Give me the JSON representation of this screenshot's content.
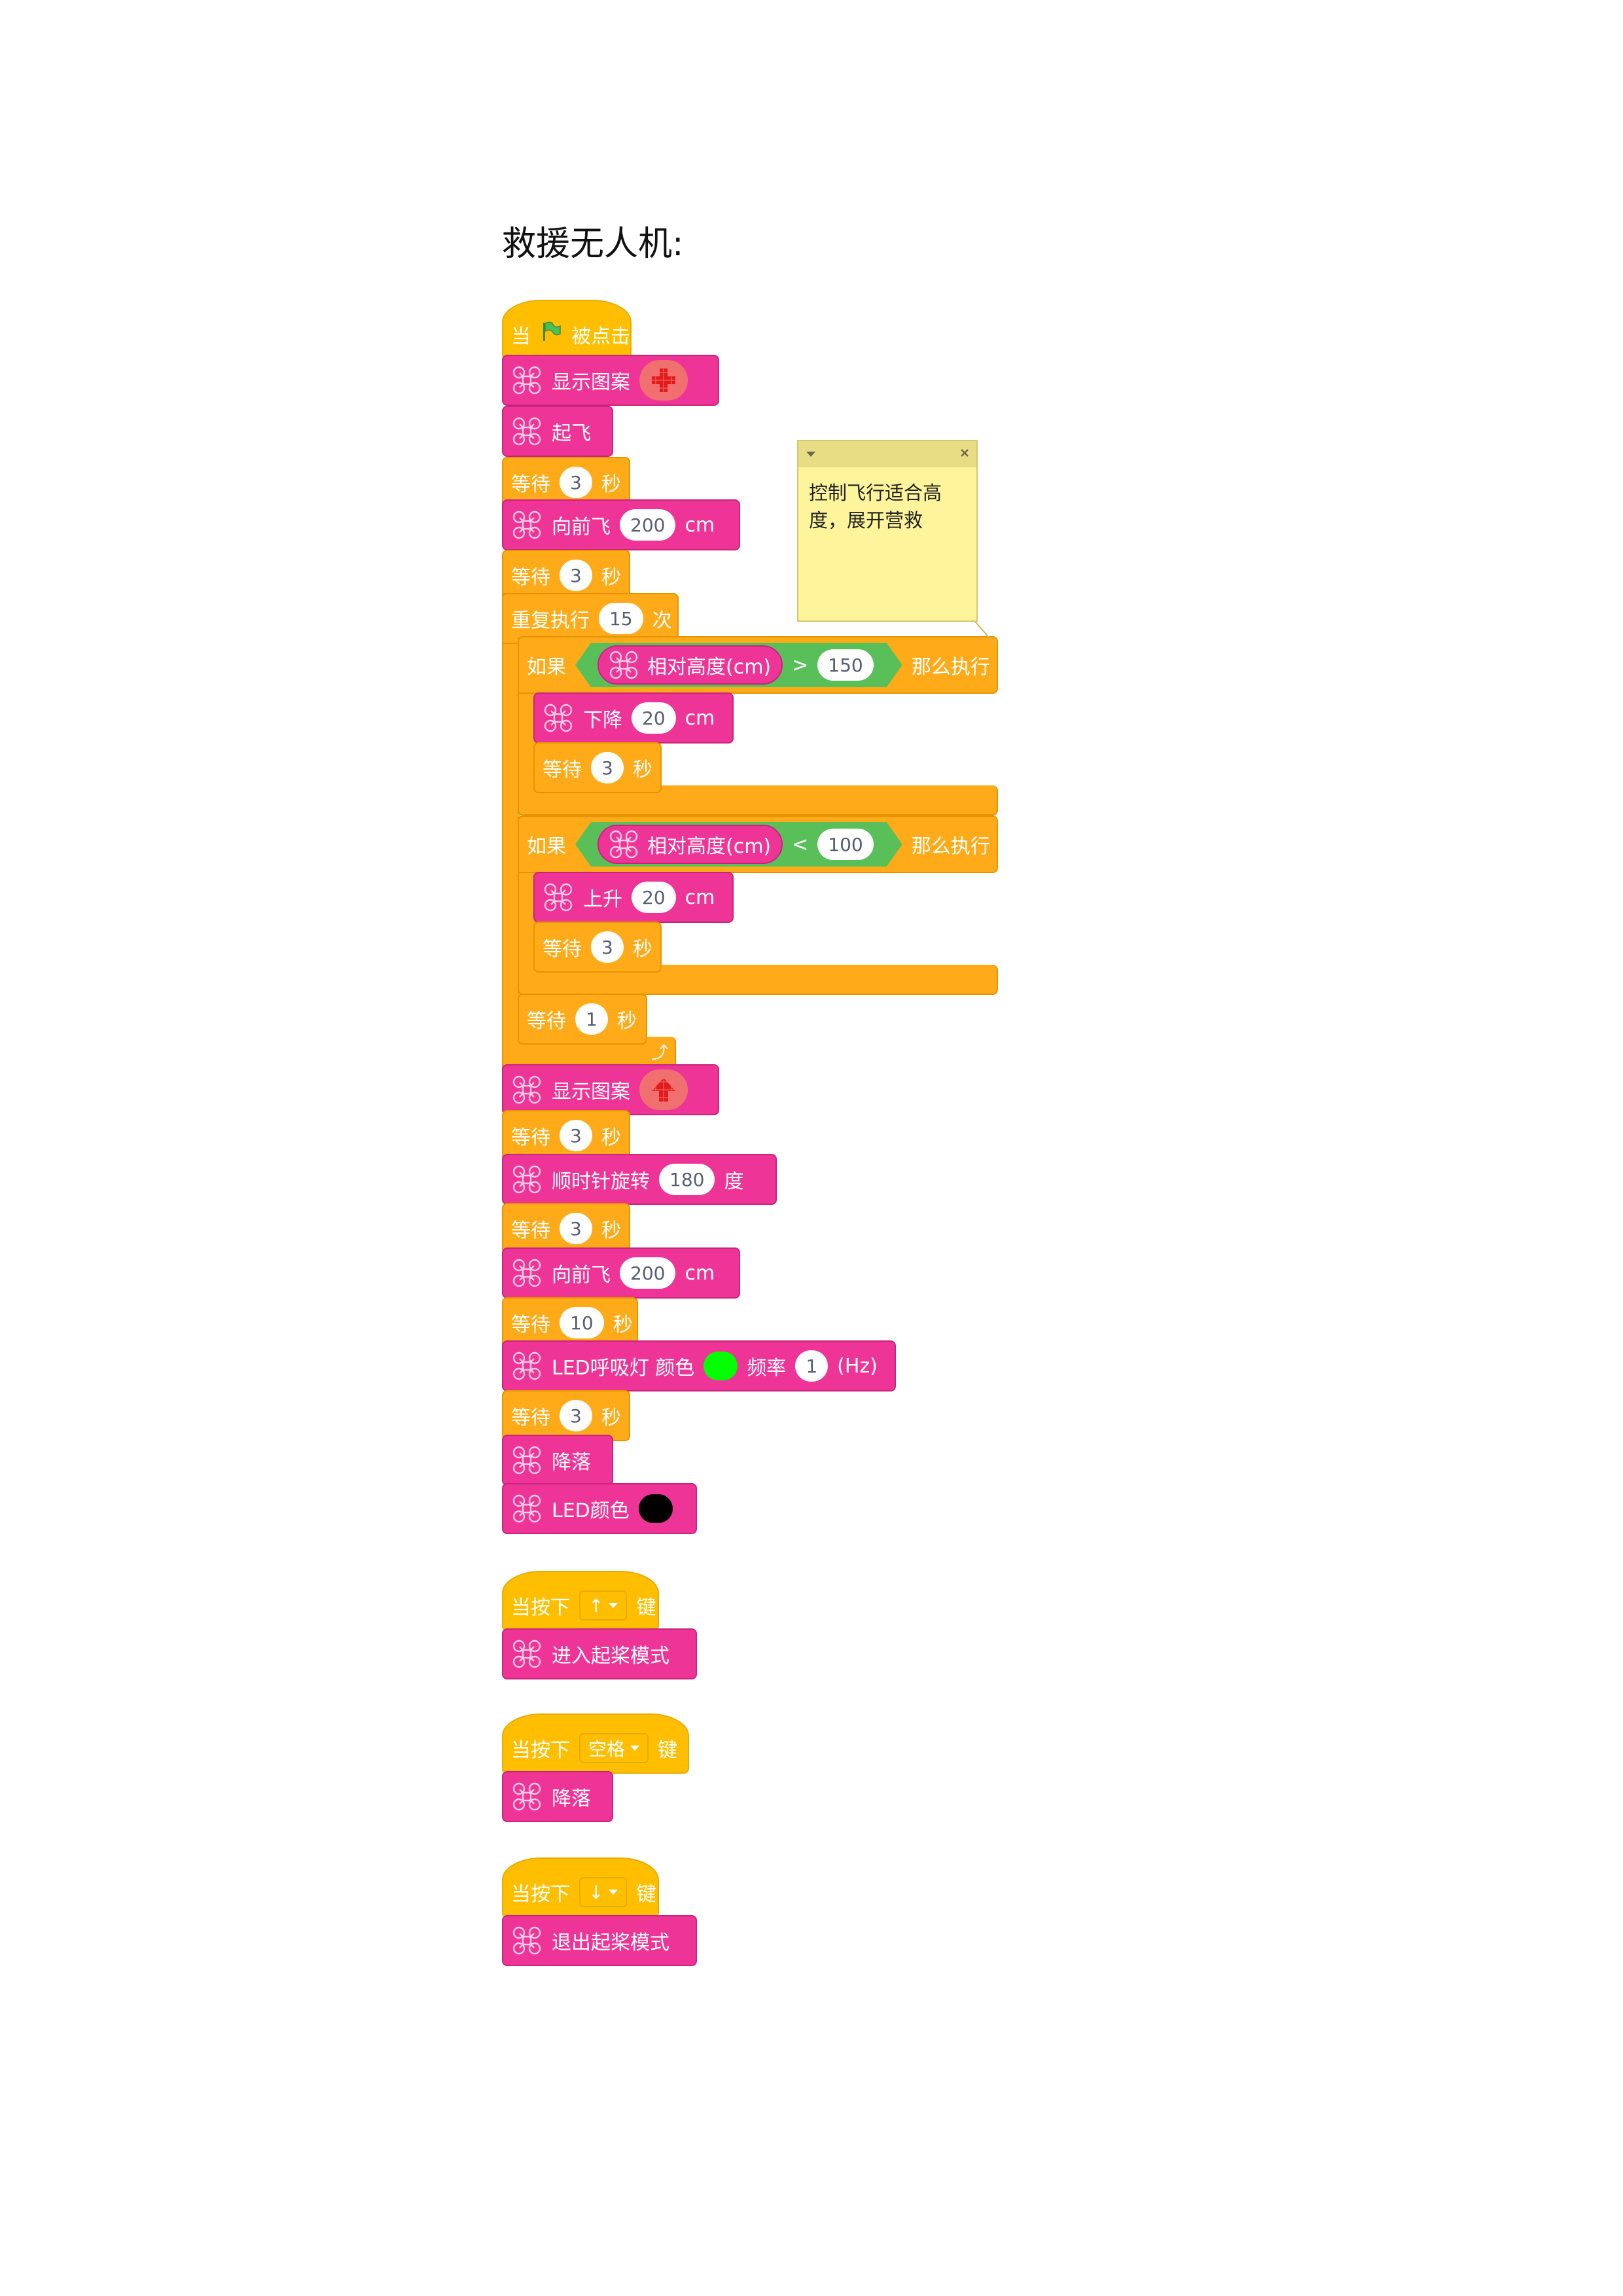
{
  "page_title": "救援无人机:",
  "colors": {
    "motion_block": "#ee3597",
    "control_block": "#ffab19",
    "event_block": "#ffbf00",
    "operator_block": "#59c059",
    "note_background": "#fef49c"
  },
  "icons": {
    "drone": "drone-icon",
    "green_flag": "green-flag-icon",
    "up_arrow_pattern": "up-arrow-pattern-icon",
    "cross_pattern": "cross-pattern-icon",
    "loop_arrow": "loop-arrow-icon"
  },
  "comment": {
    "text": "控制飞行适合高度，展开营救"
  },
  "main_script": {
    "hat": {
      "prefix": "当",
      "suffix": "被点击"
    },
    "show_pattern_1": {
      "label": "显示图案",
      "pattern": "cross-pattern-icon"
    },
    "takeoff": {
      "label": "起飞"
    },
    "wait_1": {
      "label": "等待",
      "value": "3",
      "unit": "秒"
    },
    "forward_1": {
      "label": "向前飞",
      "value": "200",
      "unit": "cm"
    },
    "wait_2": {
      "label": "等待",
      "value": "3",
      "unit": "秒"
    },
    "repeat": {
      "label": "重复执行",
      "value": "15",
      "unit": "次"
    },
    "if_1": {
      "label": "如果",
      "reporter": "相对高度(cm)",
      "operator": ">",
      "value": "150",
      "then": "那么执行",
      "descend": {
        "label": "下降",
        "value": "20",
        "unit": "cm"
      },
      "wait": {
        "label": "等待",
        "value": "3",
        "unit": "秒"
      }
    },
    "if_2": {
      "label": "如果",
      "reporter": "相对高度(cm)",
      "operator": "<",
      "value": "100",
      "then": "那么执行",
      "ascend": {
        "label": "上升",
        "value": "20",
        "unit": "cm"
      },
      "wait": {
        "label": "等待",
        "value": "3",
        "unit": "秒"
      }
    },
    "loop_wait": {
      "label": "等待",
      "value": "1",
      "unit": "秒"
    },
    "show_pattern_2": {
      "label": "显示图案",
      "pattern": "up-arrow-pattern-icon"
    },
    "wait_3": {
      "label": "等待",
      "value": "3",
      "unit": "秒"
    },
    "rotate": {
      "label": "顺时针旋转",
      "value": "180",
      "unit": "度"
    },
    "wait_4": {
      "label": "等待",
      "value": "3",
      "unit": "秒"
    },
    "forward_2": {
      "label": "向前飞",
      "value": "200",
      "unit": "cm"
    },
    "wait_5": {
      "label": "等待",
      "value": "10",
      "unit": "秒"
    },
    "led_breath": {
      "label": "LED呼吸灯 颜色",
      "color": "#00ff00",
      "freq_label": "频率",
      "freq_value": "1",
      "freq_unit": "(Hz)"
    },
    "wait_6": {
      "label": "等待",
      "value": "3",
      "unit": "秒"
    },
    "land": {
      "label": "降落"
    },
    "led_color": {
      "label": "LED颜色",
      "color": "#000000"
    }
  },
  "key_scripts": [
    {
      "hat_prefix": "当按下",
      "key": "↑",
      "hat_suffix": "键",
      "action": "进入起桨模式"
    },
    {
      "hat_prefix": "当按下",
      "key": "空格",
      "hat_suffix": "键",
      "action": "降落"
    },
    {
      "hat_prefix": "当按下",
      "key": "↓",
      "hat_suffix": "键",
      "action": "退出起桨模式"
    }
  ]
}
